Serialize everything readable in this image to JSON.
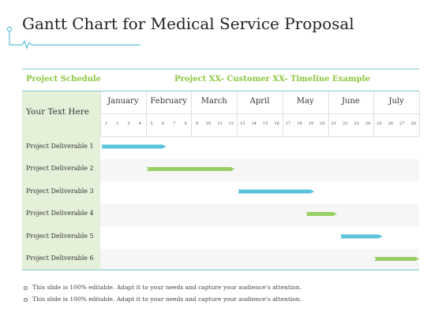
{
  "title": "Gantt Chart for Medical Service Proposal",
  "colors": {
    "blue": "#5bc2dc",
    "green": "#97cf63",
    "accent_text": "#8cc63f",
    "line": "#7fc8d6"
  },
  "header": {
    "left": "Project Schedule",
    "right": "Project XX- Customer XX- Timeline Example"
  },
  "left_label": "Your Text Here",
  "months": [
    "January",
    "February",
    "March",
    "April",
    "May",
    "June",
    "July"
  ],
  "days": [
    "1",
    "2",
    "3",
    "4",
    "5",
    "6",
    "7",
    "8",
    "9",
    "10",
    "11",
    "12",
    "13",
    "14",
    "15",
    "16",
    "17",
    "18",
    "19",
    "20",
    "21",
    "22",
    "23",
    "24",
    "25",
    "26",
    "27",
    "28"
  ],
  "deliverables": [
    {
      "label": "Project Deliverable 1",
      "start_day": 1,
      "end_day": 5.8,
      "color": "blue"
    },
    {
      "label": "Project Deliverable 2",
      "start_day": 5,
      "end_day": 11.8,
      "color": "green"
    },
    {
      "label": "Project Deliverable 3",
      "start_day": 13,
      "end_day": 18.8,
      "color": "blue"
    },
    {
      "label": "Project Deliverable 4",
      "start_day": 19,
      "end_day": 20.8,
      "color": "green"
    },
    {
      "label": "Project Deliverable 5",
      "start_day": 22,
      "end_day": 24.8,
      "color": "blue"
    },
    {
      "label": "Project Deliverable 6",
      "start_day": 25,
      "end_day": 28.6,
      "color": "green"
    }
  ],
  "notes": [
    "This slide is 100% editable. Adapt it to your needs and capture your audience's attention.",
    "This slide is 100% editable. Adapt it to your needs and capture your audience's attention."
  ]
}
